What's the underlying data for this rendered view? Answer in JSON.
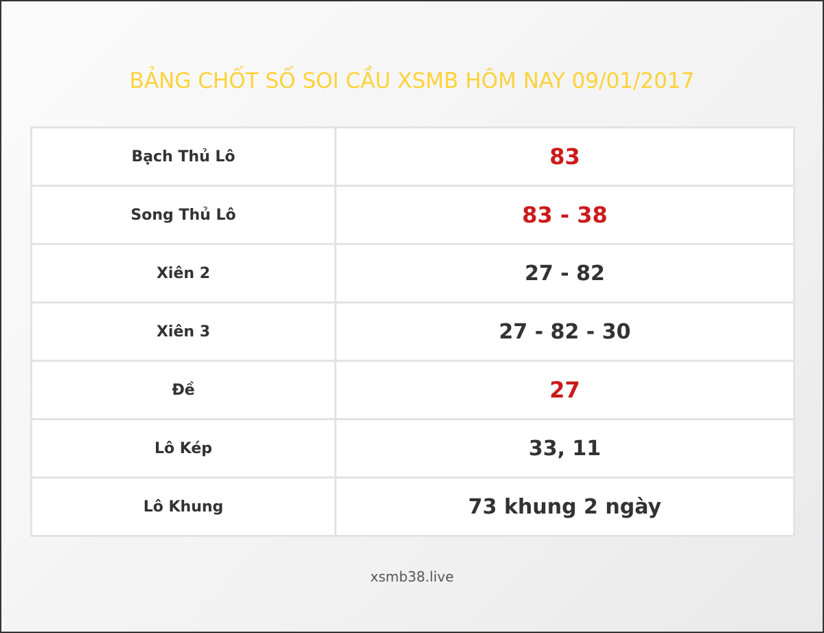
{
  "title": "BẢNG CHỐT SỐ SOI CẦU XSMB HÔM NAY 09/01/2017",
  "rows": [
    {
      "label": "Bạch Thủ Lô",
      "value": "83",
      "highlight": true
    },
    {
      "label": "Song Thủ Lô",
      "value": "83 - 38",
      "highlight": true
    },
    {
      "label": "Xiên 2",
      "value": "27 - 82",
      "highlight": false
    },
    {
      "label": "Xiên 3",
      "value": "27 - 82 - 30",
      "highlight": false
    },
    {
      "label": "Đề",
      "value": "27",
      "highlight": true
    },
    {
      "label": "Lô Kép",
      "value": "33, 11",
      "highlight": false
    },
    {
      "label": "Lô Khung",
      "value": "73 khung 2 ngày",
      "highlight": false
    }
  ],
  "footer": "xsmb38.live",
  "colors": {
    "title": "#fdd23a",
    "highlight": "#cc1a1a",
    "text": "#333333"
  }
}
